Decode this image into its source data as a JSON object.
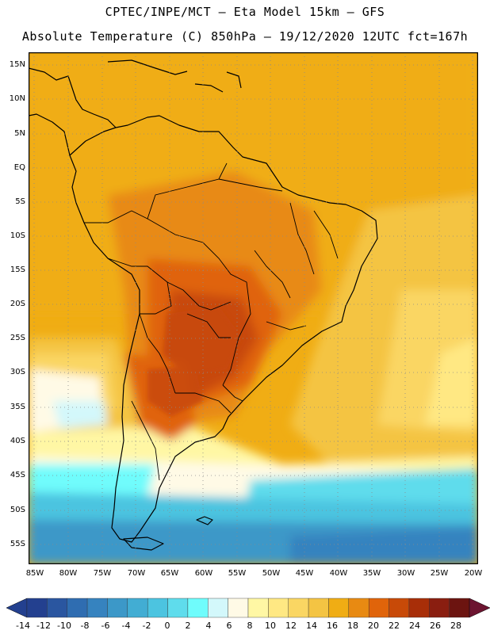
{
  "title": {
    "line1": "CPTEC/INPE/MCT –  Eta Model 15km – GFS",
    "line2": "Absolute Temperature (C) 850hPa – 19/12/2020 12UTC fct=167h"
  },
  "axes": {
    "lat_ticks": [
      "15N",
      "10N",
      "5N",
      "EQ",
      "5S",
      "10S",
      "15S",
      "20S",
      "25S",
      "30S",
      "35S",
      "40S",
      "45S",
      "50S",
      "55S"
    ],
    "lon_ticks": [
      "85W",
      "80W",
      "75W",
      "70W",
      "65W",
      "60W",
      "55W",
      "50W",
      "45W",
      "40W",
      "35W",
      "30W",
      "25W",
      "20W"
    ]
  },
  "colorbar": {
    "labels": [
      "-14",
      "-12",
      "-10",
      "-8",
      "-6",
      "-4",
      "-2",
      "0",
      "2",
      "4",
      "6",
      "8",
      "10",
      "12",
      "14",
      "16",
      "18",
      "20",
      "22",
      "24",
      "26",
      "28"
    ],
    "colors": [
      "#23408f",
      "#2a56a0",
      "#2f6db1",
      "#3683bf",
      "#3c98c8",
      "#42add3",
      "#4cc4e0",
      "#5fdcec",
      "#6ffcfc",
      "#d3f8fb",
      "#fffae6",
      "#fff7a4",
      "#ffe883",
      "#fad663",
      "#f4c443",
      "#f0ad14",
      "#e88a12",
      "#e0640a",
      "#c84a08",
      "#a82e08",
      "#8a1e10",
      "#6c1410"
    ]
  }
}
